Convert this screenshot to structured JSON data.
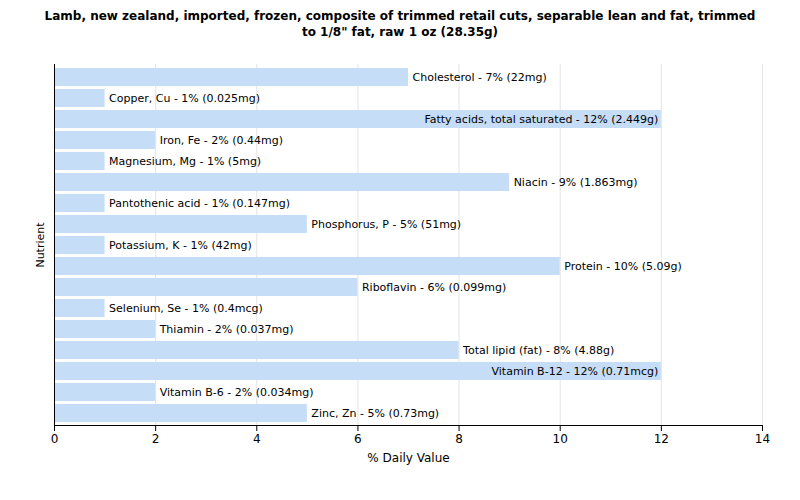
{
  "chart_data": {
    "type": "bar",
    "title": "Lamb, new zealand, imported, frozen, composite of trimmed retail cuts, separable lean and fat, trimmed to 1/8\" fat, raw 1 oz (28.35g)",
    "xlabel": "% Daily Value",
    "ylabel": "Nutrient",
    "orientation": "horizontal",
    "categories": [
      "Cholesterol - 7% (22mg)",
      "Copper, Cu - 1% (0.025mg)",
      "Fatty acids, total saturated - 12% (2.449g)",
      "Iron, Fe - 2% (0.44mg)",
      "Magnesium, Mg - 1% (5mg)",
      "Niacin - 9% (1.863mg)",
      "Pantothenic acid - 1% (0.147mg)",
      "Phosphorus, P - 5% (51mg)",
      "Potassium, K - 1% (42mg)",
      "Protein - 10% (5.09g)",
      "Riboflavin - 6% (0.099mg)",
      "Selenium, Se - 1% (0.4mcg)",
      "Thiamin - 2% (0.037mg)",
      "Total lipid (fat) - 8% (4.88g)",
      "Vitamin B-12 - 12% (0.71mcg)",
      "Vitamin B-6 - 2% (0.034mg)",
      "Zinc, Zn - 5% (0.73mg)"
    ],
    "values": [
      7,
      1,
      12,
      2,
      1,
      9,
      1,
      5,
      1,
      10,
      6,
      1,
      2,
      8,
      12,
      2,
      5
    ],
    "color": "#c6ddf8",
    "xlim": [
      0,
      14
    ],
    "xticks": [
      0,
      2,
      4,
      6,
      8,
      10,
      12,
      14
    ],
    "grid": true,
    "tick_labels": "x"
  }
}
